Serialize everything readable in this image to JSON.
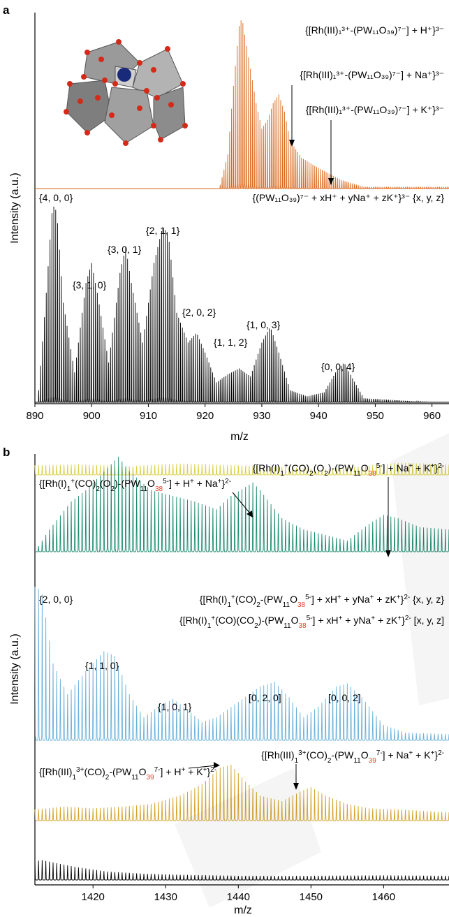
{
  "chart_data": [
    {
      "panel": "a",
      "type": "line",
      "xlabel": "m/z",
      "ylabel": "Intensity (a.u.)",
      "xlim": [
        890,
        963
      ],
      "xticks": [
        "890",
        "900",
        "910",
        "920",
        "930",
        "940",
        "950",
        "960"
      ],
      "colors": {
        "top": "#d9661a",
        "bottom": "#000000"
      },
      "series": [
        {
          "trace": "top",
          "envelope": [
            [
              922.5,
              0.0
            ],
            [
              924,
              0.2
            ],
            [
              925,
              0.6
            ],
            [
              926,
              0.95
            ],
            [
              926.5,
              1.0
            ],
            [
              927,
              0.9
            ],
            [
              928,
              0.7
            ],
            [
              929,
              0.5
            ],
            [
              930,
              0.35
            ],
            [
              931,
              0.4
            ],
            [
              932,
              0.5
            ],
            [
              933,
              0.55
            ],
            [
              934,
              0.45
            ],
            [
              935,
              0.28
            ],
            [
              937,
              0.18
            ],
            [
              940,
              0.12
            ],
            [
              944,
              0.05
            ],
            [
              948,
              0.01
            ]
          ]
        },
        {
          "trace": "bottom",
          "envelope": [
            [
              890.5,
              0.0
            ],
            [
              892,
              0.55
            ],
            [
              893,
              0.95
            ],
            [
              893.5,
              1.0
            ],
            [
              894,
              0.9
            ],
            [
              895,
              0.5
            ],
            [
              897,
              0.15
            ],
            [
              899,
              0.6
            ],
            [
              900,
              0.7
            ],
            [
              901,
              0.55
            ],
            [
              903,
              0.2
            ],
            [
              905,
              0.65
            ],
            [
              906,
              0.78
            ],
            [
              907,
              0.6
            ],
            [
              909,
              0.3
            ],
            [
              911,
              0.7
            ],
            [
              912.5,
              0.88
            ],
            [
              913.5,
              0.85
            ],
            [
              915,
              0.45
            ],
            [
              917,
              0.3
            ],
            [
              918.5,
              0.35
            ],
            [
              920,
              0.25
            ],
            [
              922,
              0.1
            ],
            [
              924,
              0.14
            ],
            [
              926,
              0.17
            ],
            [
              928,
              0.13
            ],
            [
              930,
              0.3
            ],
            [
              931.5,
              0.38
            ],
            [
              933,
              0.25
            ],
            [
              935,
              0.06
            ],
            [
              938,
              0.03
            ],
            [
              941,
              0.05
            ],
            [
              943,
              0.15
            ],
            [
              944.5,
              0.2
            ],
            [
              946,
              0.12
            ],
            [
              948,
              0.02
            ],
            [
              960,
              0.0
            ]
          ]
        }
      ],
      "annotations": {
        "rh_h": "{[Rh(III)₁³⁺-(PW₁₁O₃₉)⁷⁻] + H⁺}³⁻",
        "rh_na": "{[Rh(III)₁³⁺-(PW₁₁O₃₉)⁷⁻] + Na⁺}³⁻",
        "rh_k": "{[Rh(III)₁³⁺-(PW₁₁O₃₉)⁷⁻] + K⁺}³⁻",
        "pw_legend": "{(PW₁₁O₃₉)⁷⁻ + xH⁺ + yNa⁺ + zK⁺}³⁻ {x, y, z}",
        "peaks": [
          "{4, 0, 0}",
          "{3, 1, 0}",
          "{3, 0, 1}",
          "{2, 1, 1}",
          "{2, 0, 2}",
          "{1, 1, 2}",
          "{1, 0, 3}",
          "{0, 0, 4}"
        ]
      }
    },
    {
      "panel": "b",
      "type": "line",
      "xlabel": "m/z",
      "ylabel": "Intensity (a.u.)",
      "xlim": [
        1412,
        1469
      ],
      "xticks": [
        "1420",
        "1430",
        "1440",
        "1450",
        "1460"
      ],
      "colors": {
        "yellow": "#d9cf45",
        "green": "#1b8a6e",
        "blue": "#6ab0d8",
        "gold": "#d4a22a",
        "black": "#000000",
        "red_highlight": "#e8402e"
      },
      "series": [
        {
          "trace": "yellow",
          "envelope": [
            [
              1412,
              0.55
            ],
            [
              1418,
              0.6
            ],
            [
              1425,
              0.5
            ],
            [
              1432,
              0.65
            ],
            [
              1440,
              0.55
            ],
            [
              1447,
              0.45
            ],
            [
              1452,
              0.3
            ],
            [
              1457,
              0.5
            ],
            [
              1462,
              0.7
            ],
            [
              1469,
              0.6
            ]
          ]
        },
        {
          "trace": "green",
          "envelope": [
            [
              1412,
              0.0
            ],
            [
              1414,
              0.2
            ],
            [
              1417,
              0.45
            ],
            [
              1419,
              0.55
            ],
            [
              1422,
              0.75
            ],
            [
              1423.5,
              0.85
            ],
            [
              1425,
              0.72
            ],
            [
              1428,
              0.55
            ],
            [
              1431,
              0.5
            ],
            [
              1434,
              0.45
            ],
            [
              1437,
              0.38
            ],
            [
              1439,
              0.5
            ],
            [
              1442,
              0.62
            ],
            [
              1443,
              0.55
            ],
            [
              1446,
              0.3
            ],
            [
              1449,
              0.2
            ],
            [
              1452,
              0.15
            ],
            [
              1455,
              0.1
            ],
            [
              1458,
              0.25
            ],
            [
              1460,
              0.33
            ],
            [
              1462,
              0.3
            ],
            [
              1465,
              0.22
            ],
            [
              1469,
              0.2
            ]
          ]
        },
        {
          "trace": "blue",
          "envelope": [
            [
              1412.3,
              1.0
            ],
            [
              1413,
              0.95
            ],
            [
              1414.5,
              0.5
            ],
            [
              1416.5,
              0.3
            ],
            [
              1419,
              0.45
            ],
            [
              1421.5,
              0.58
            ],
            [
              1423,
              0.55
            ],
            [
              1425,
              0.3
            ],
            [
              1427,
              0.15
            ],
            [
              1429,
              0.22
            ],
            [
              1431,
              0.27
            ],
            [
              1433,
              0.2
            ],
            [
              1435,
              0.12
            ],
            [
              1437,
              0.15
            ],
            [
              1440,
              0.25
            ],
            [
              1443,
              0.35
            ],
            [
              1445,
              0.38
            ],
            [
              1447,
              0.28
            ],
            [
              1449,
              0.15
            ],
            [
              1451,
              0.22
            ],
            [
              1453.5,
              0.35
            ],
            [
              1455,
              0.37
            ],
            [
              1457,
              0.28
            ],
            [
              1460,
              0.1
            ],
            [
              1463,
              0.05
            ],
            [
              1469,
              0.04
            ]
          ]
        },
        {
          "trace": "gold",
          "envelope": [
            [
              1412,
              0.2
            ],
            [
              1416,
              0.25
            ],
            [
              1420,
              0.22
            ],
            [
              1424,
              0.25
            ],
            [
              1428,
              0.3
            ],
            [
              1432,
              0.45
            ],
            [
              1435,
              0.65
            ],
            [
              1437.5,
              0.95
            ],
            [
              1439,
              1.0
            ],
            [
              1441,
              0.7
            ],
            [
              1443,
              0.45
            ],
            [
              1446,
              0.35
            ],
            [
              1449,
              0.55
            ],
            [
              1450,
              0.6
            ],
            [
              1452,
              0.45
            ],
            [
              1455,
              0.3
            ],
            [
              1458,
              0.22
            ],
            [
              1462,
              0.2
            ],
            [
              1469,
              0.15
            ]
          ]
        },
        {
          "trace": "black",
          "envelope": [
            [
              1412,
              0.9
            ],
            [
              1413,
              0.95
            ],
            [
              1415,
              0.8
            ],
            [
              1418,
              0.6
            ],
            [
              1422,
              0.4
            ],
            [
              1427,
              0.3
            ],
            [
              1432,
              0.25
            ],
            [
              1440,
              0.2
            ],
            [
              1450,
              0.2
            ],
            [
              1460,
              0.22
            ],
            [
              1469,
              0.2
            ]
          ]
        }
      ],
      "annotations": {
        "green_right_pre": "{[Rh(I)",
        "green_right_sub1": "1",
        "green_right_sup1": "+",
        "green_right_mid": "(CO)",
        "green_right_sub2": "2",
        "green_right_mid2": "(O",
        "green_right_sub3": "2",
        "green_right_mid3": ")-(PW",
        "green_right_sub4": "11",
        "green_right_o": "O",
        "green_right_sub5": "38",
        "green_right_sup2": "5-",
        "green_right_post": "] + Na",
        "green_right_sup3": "+",
        "green_right_post2": " + K",
        "green_right_sup4": "+",
        "green_right_end": "}",
        "green_right_sup5": "2-",
        "green_left_post": "] + H",
        "green_left_post2": " + Na",
        "blue_label1_pre": "{[Rh(I)",
        "blue_label1_mid": "(CO)",
        "blue_label1_mid2": "-(PW",
        "blue_label1_post": "] + xH",
        "blue_label1_post2": " + yNa",
        "blue_label1_post3": " + zK",
        "blue_label1_xyz": " {x, y, z}",
        "blue_label2_mid": "(CO)(CO",
        "blue_label2_mid2": ")-(PW",
        "blue_label2_xyz": " [x, y, z]",
        "gold_right_pre": "{[Rh(III)",
        "gold_sup_3": "3+",
        "gold_right_mid": "(CO)",
        "gold_sub_39": "39",
        "gold_sup_7": "7-",
        "gold_left_post": "] + H",
        "gold_left_post2": " + K",
        "peaks_curly": [
          "{2, 0, 0}",
          "{1, 1, 0}",
          "{1, 0, 1}"
        ],
        "peaks_square": [
          "[0, 2, 0]",
          "[0, 0, 2]"
        ]
      }
    }
  ],
  "panel_labels": {
    "a": "a",
    "b": "b"
  }
}
